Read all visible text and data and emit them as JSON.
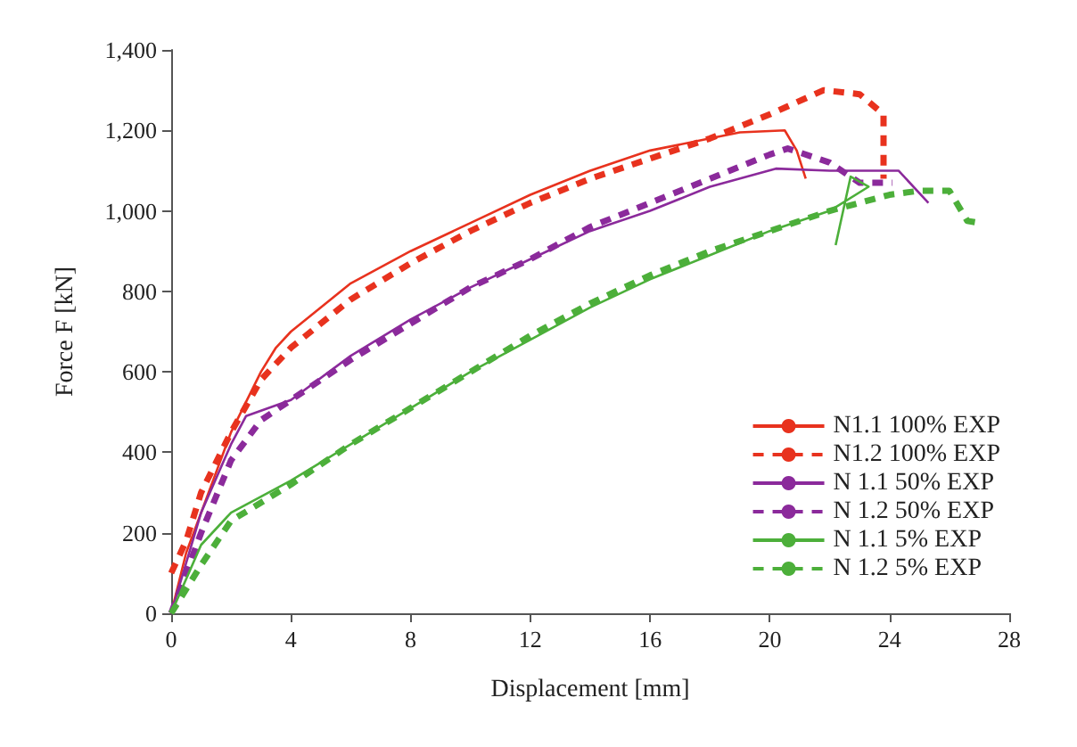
{
  "chart_data": {
    "type": "line",
    "xlabel": "Displacement [mm]",
    "ylabel": "Force F [kN]",
    "xlim": [
      0,
      28
    ],
    "xticks": [
      0,
      4,
      8,
      12,
      16,
      20,
      24,
      28
    ],
    "ylim": [
      0,
      1400
    ],
    "yticks": [
      0,
      200,
      400,
      600,
      800,
      {
        "value": 1000,
        "label": "1,000"
      },
      {
        "value": 1200,
        "label": "1,200"
      },
      {
        "value": 1400,
        "label": "1,400"
      }
    ],
    "grid": false,
    "legend": "bottom right",
    "marker": "none",
    "series": [
      {
        "name": "N1.1 100% EXP",
        "color": "#e8321e",
        "line_style": "solid",
        "x": [
          0,
          0.5,
          1,
          2,
          3,
          3.5,
          4,
          6,
          8,
          10,
          12,
          14,
          16,
          18,
          19,
          20.5,
          20.9,
          21.2
        ],
        "values": [
          0,
          150,
          250,
          450,
          600,
          660,
          700,
          820,
          900,
          970,
          1040,
          1100,
          1150,
          1180,
          1195,
          1200,
          1150,
          1080
        ]
      },
      {
        "name": "N1.2 100% EXP",
        "color": "#e8321e",
        "line_style": "dashed",
        "x": [
          0,
          0.5,
          1,
          2,
          3,
          4,
          6,
          8,
          10,
          12,
          14,
          16,
          18,
          20,
          21.8,
          23,
          23.8,
          23.8
        ],
        "values": [
          100,
          180,
          300,
          450,
          580,
          660,
          780,
          870,
          950,
          1020,
          1080,
          1130,
          1180,
          1240,
          1300,
          1290,
          1240,
          1080
        ]
      },
      {
        "name": "N 1.1 50% EXP",
        "color": "#8b2a9b",
        "line_style": "solid",
        "x": [
          0,
          1,
          2,
          2.5,
          4,
          6,
          8,
          10,
          12,
          14,
          16,
          18,
          20.2,
          22,
          24.3,
          25.3
        ],
        "values": [
          0,
          250,
          420,
          490,
          530,
          640,
          730,
          810,
          880,
          950,
          1000,
          1060,
          1105,
          1100,
          1100,
          1020
        ]
      },
      {
        "name": "N 1.2 50% EXP",
        "color": "#8b2a9b",
        "line_style": "dashed",
        "x": [
          0,
          1,
          2,
          3,
          4,
          6,
          8,
          10,
          12,
          14,
          16,
          18,
          20,
          20.6,
          22,
          23,
          24.1
        ],
        "values": [
          0,
          200,
          380,
          480,
          530,
          630,
          720,
          810,
          880,
          960,
          1020,
          1080,
          1140,
          1155,
          1120,
          1070,
          1070
        ]
      },
      {
        "name": "N 1.1 5% EXP",
        "color": "#4caf3a",
        "line_style": "solid",
        "x": [
          0,
          1,
          2,
          4,
          6,
          8,
          10,
          12,
          14,
          16,
          18,
          20,
          22,
          23.3,
          22.7,
          22.2
        ],
        "values": [
          0,
          170,
          250,
          330,
          420,
          510,
          600,
          680,
          760,
          830,
          890,
          950,
          1000,
          1060,
          1085,
          915
        ]
      },
      {
        "name": "N 1.2 5% EXP",
        "color": "#4caf3a",
        "line_style": "dashed",
        "x": [
          0,
          1,
          2,
          4,
          6,
          8,
          10,
          12,
          14,
          16,
          18,
          20,
          22,
          24,
          25,
          26,
          26.6,
          27
        ],
        "values": [
          0,
          120,
          230,
          320,
          420,
          510,
          600,
          690,
          770,
          840,
          900,
          950,
          1000,
          1040,
          1050,
          1050,
          975,
          970
        ]
      }
    ]
  }
}
